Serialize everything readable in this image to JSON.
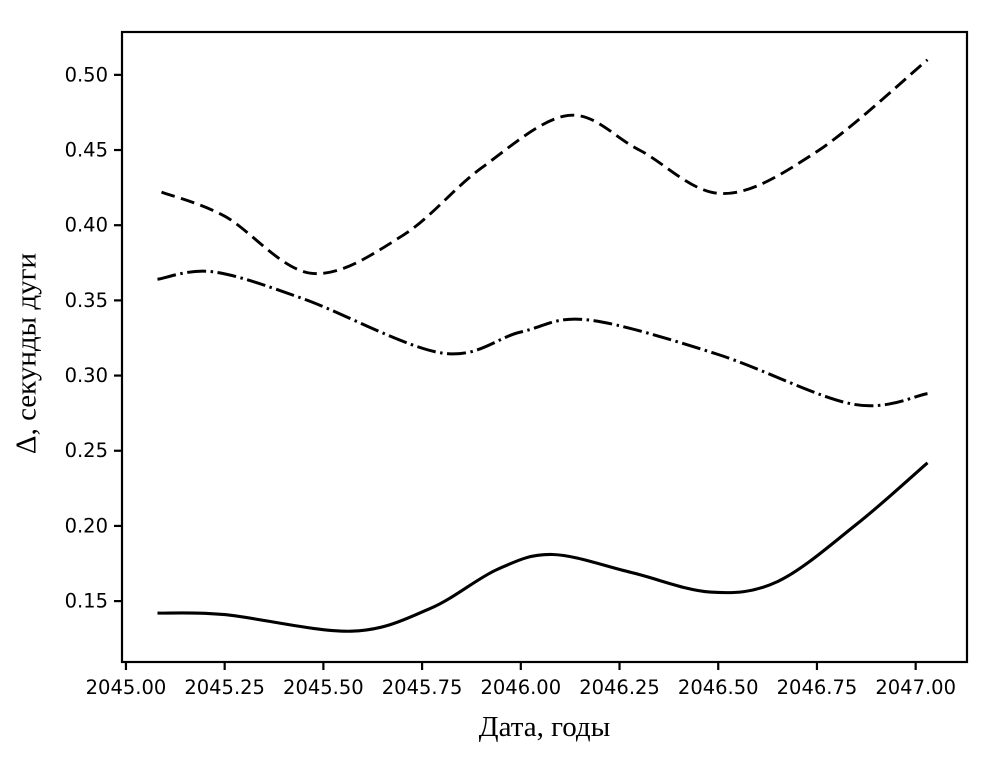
{
  "figure": {
    "background": "#ffffff",
    "axis_color": "#000000",
    "text_color": "#000000"
  },
  "chart_data": {
    "type": "line",
    "title": "",
    "xlabel": "Дата, годы",
    "ylabel": "Δ, секунды дуги",
    "xlim": [
      2044.99,
      2047.13
    ],
    "ylim": [
      0.1095,
      0.5285
    ],
    "grid": false,
    "legend": false,
    "x_ticks": {
      "values": [
        2045.0,
        2045.25,
        2045.5,
        2045.75,
        2046.0,
        2046.25,
        2046.5,
        2046.75,
        2047.0
      ],
      "labels": [
        "2045.00",
        "2045.25",
        "2045.50",
        "2045.75",
        "2046.00",
        "2046.25",
        "2046.50",
        "2046.75",
        "2047.00"
      ]
    },
    "y_ticks": {
      "values": [
        0.15,
        0.2,
        0.25,
        0.3,
        0.35,
        0.4,
        0.45,
        0.5
      ],
      "labels": [
        "0.15",
        "0.20",
        "0.25",
        "0.30",
        "0.35",
        "0.40",
        "0.45",
        "0.50"
      ]
    },
    "series": [
      {
        "name": "dashed",
        "linestyle": "dashed",
        "color": "#000000",
        "points": [
          [
            2045.09,
            0.422
          ],
          [
            2045.25,
            0.406
          ],
          [
            2045.47,
            0.368
          ],
          [
            2045.7,
            0.393
          ],
          [
            2045.9,
            0.438
          ],
          [
            2046.12,
            0.473
          ],
          [
            2046.3,
            0.45
          ],
          [
            2046.51,
            0.421
          ],
          [
            2046.75,
            0.449
          ],
          [
            2047.03,
            0.51
          ]
        ]
      },
      {
        "name": "dash-dot",
        "linestyle": "dashdot",
        "color": "#000000",
        "points": [
          [
            2045.08,
            0.364
          ],
          [
            2045.22,
            0.369
          ],
          [
            2045.45,
            0.351
          ],
          [
            2045.8,
            0.315
          ],
          [
            2046.0,
            0.329
          ],
          [
            2046.17,
            0.337
          ],
          [
            2046.5,
            0.314
          ],
          [
            2046.84,
            0.281
          ],
          [
            2047.03,
            0.288
          ]
        ]
      },
      {
        "name": "solid",
        "linestyle": "solid",
        "color": "#000000",
        "points": [
          [
            2045.08,
            0.142
          ],
          [
            2045.25,
            0.141
          ],
          [
            2045.57,
            0.13
          ],
          [
            2045.77,
            0.145
          ],
          [
            2045.94,
            0.171
          ],
          [
            2046.08,
            0.181
          ],
          [
            2046.28,
            0.169
          ],
          [
            2046.48,
            0.156
          ],
          [
            2046.65,
            0.163
          ],
          [
            2046.85,
            0.201
          ],
          [
            2047.03,
            0.242
          ]
        ]
      }
    ]
  }
}
